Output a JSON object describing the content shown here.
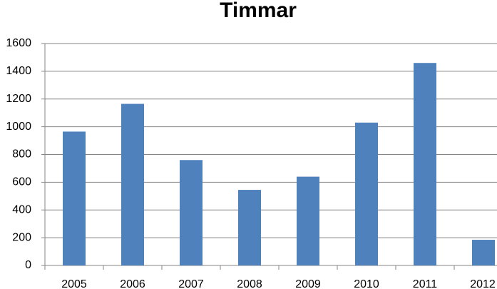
{
  "chart_data": {
    "type": "bar",
    "title": "Timmar",
    "categories": [
      "2005",
      "2006",
      "2007",
      "2008",
      "2009",
      "2010",
      "2011",
      "2012"
    ],
    "values": [
      965,
      1165,
      760,
      545,
      640,
      1030,
      1460,
      185
    ],
    "color": "#4f81bd",
    "ylim": [
      0,
      1600
    ],
    "yticks": [
      0,
      200,
      400,
      600,
      800,
      1000,
      1200,
      1400,
      1600
    ],
    "grid": true
  }
}
